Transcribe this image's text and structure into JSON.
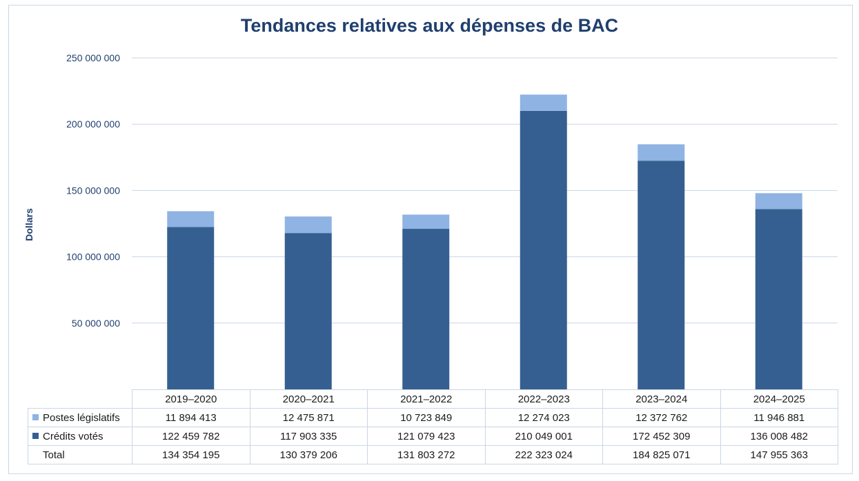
{
  "chart_data": {
    "type": "bar",
    "stacked": true,
    "title": "Tendances relatives aux dépenses de BAC",
    "ylabel": "Dollars",
    "xlabel": "",
    "ylim": [
      0,
      250000000
    ],
    "yticks": [
      50000000,
      100000000,
      150000000,
      200000000,
      250000000
    ],
    "ytick_labels": [
      "50 000 000",
      "100 000 000",
      "150 000 000",
      "200 000 000",
      "250 000 000"
    ],
    "grid": true,
    "legend_placement": "data-table",
    "categories": [
      "2019–2020",
      "2020–2021",
      "2021–2022",
      "2022–2023",
      "2023–2024",
      "2024–2025"
    ],
    "series": [
      {
        "name": "Crédits votés",
        "color": "#355f91",
        "values": [
          122459782,
          117903335,
          121079423,
          210049001,
          172452309,
          136008482
        ],
        "labels": [
          "122 459 782",
          "117 903 335",
          "121 079 423",
          "210 049 001",
          "172 452 309",
          "136 008 482"
        ]
      },
      {
        "name": "Postes législatifs",
        "color": "#8fb3e2",
        "values": [
          11894413,
          12475871,
          10723849,
          12274023,
          12372762,
          11946881
        ],
        "labels": [
          "11 894 413",
          "12 475 871",
          "10 723 849",
          "12 274 023",
          "12 372 762",
          "11 946 881"
        ]
      }
    ],
    "totals": {
      "name": "Total",
      "values": [
        134354195,
        130379206,
        131803272,
        222323024,
        184825071,
        147955363
      ],
      "labels": [
        "134 354 195",
        "130 379 206",
        "131 803 272",
        "222 323 024",
        "184 825 071",
        "147 955 363"
      ]
    },
    "table_order": [
      "Postes législatifs",
      "Crédits votés",
      "Total"
    ]
  }
}
